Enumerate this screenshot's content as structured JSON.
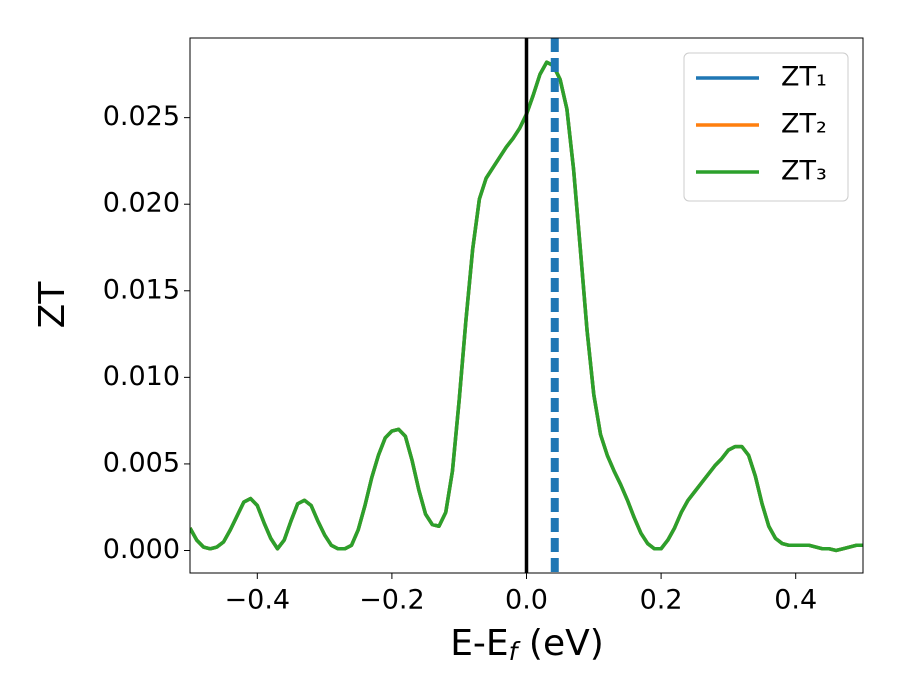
{
  "chart_data": {
    "type": "line",
    "xlabel": [
      "E-E",
      "f",
      " (eV)"
    ],
    "ylabel": "ZT",
    "x": [
      -0.5,
      -0.49,
      -0.48,
      -0.47,
      -0.46,
      -0.45,
      -0.44,
      -0.43,
      -0.42,
      -0.41,
      -0.4,
      -0.39,
      -0.38,
      -0.37,
      -0.36,
      -0.35,
      -0.34,
      -0.33,
      -0.32,
      -0.31,
      -0.3,
      -0.29,
      -0.28,
      -0.27,
      -0.26,
      -0.25,
      -0.24,
      -0.23,
      -0.22,
      -0.21,
      -0.2,
      -0.19,
      -0.18,
      -0.17,
      -0.16,
      -0.15,
      -0.14,
      -0.13,
      -0.12,
      -0.11,
      -0.1,
      -0.09,
      -0.08,
      -0.07,
      -0.06,
      -0.05,
      -0.04,
      -0.03,
      -0.02,
      -0.01,
      0.0,
      0.01,
      0.02,
      0.03,
      0.04,
      0.05,
      0.06,
      0.07,
      0.08,
      0.09,
      0.1,
      0.11,
      0.12,
      0.13,
      0.14,
      0.15,
      0.16,
      0.17,
      0.18,
      0.19,
      0.2,
      0.21,
      0.22,
      0.23,
      0.24,
      0.25,
      0.26,
      0.27,
      0.28,
      0.29,
      0.3,
      0.31,
      0.32,
      0.33,
      0.34,
      0.35,
      0.36,
      0.37,
      0.38,
      0.39,
      0.4,
      0.41,
      0.42,
      0.43,
      0.44,
      0.45,
      0.46,
      0.47,
      0.48,
      0.49,
      0.5
    ],
    "series": [
      {
        "name": "ZT₁",
        "color": "#1f77b4",
        "values": [
          0.0013,
          0.0006,
          0.0002,
          0.0001,
          0.0002,
          0.0005,
          0.0012,
          0.002,
          0.0028,
          0.003,
          0.0026,
          0.0016,
          0.0007,
          0.0001,
          0.0006,
          0.0017,
          0.0027,
          0.0029,
          0.0026,
          0.0017,
          0.0009,
          0.0003,
          0.0001,
          0.0001,
          0.0003,
          0.0012,
          0.0026,
          0.0042,
          0.0055,
          0.0065,
          0.0069,
          0.007,
          0.0066,
          0.0052,
          0.0035,
          0.0021,
          0.0015,
          0.0014,
          0.0022,
          0.0046,
          0.0087,
          0.0133,
          0.0174,
          0.0203,
          0.0215,
          0.0221,
          0.0227,
          0.0233,
          0.0238,
          0.0244,
          0.0252,
          0.0263,
          0.0275,
          0.0282,
          0.028,
          0.0272,
          0.0255,
          0.022,
          0.0174,
          0.0127,
          0.009,
          0.0067,
          0.0055,
          0.0046,
          0.0038,
          0.0029,
          0.0019,
          0.001,
          0.0004,
          0.0001,
          0.0001,
          0.0006,
          0.0013,
          0.0022,
          0.0029,
          0.0034,
          0.0039,
          0.0044,
          0.0049,
          0.0053,
          0.0058,
          0.006,
          0.006,
          0.0055,
          0.0043,
          0.0027,
          0.0014,
          0.0007,
          0.0004,
          0.0003,
          0.0003,
          0.0003,
          0.0003,
          0.0002,
          0.0001,
          0.0001,
          0.0,
          0.0001,
          0.0002,
          0.0003,
          0.0003
        ]
      },
      {
        "name": "ZT₂",
        "color": "#ff7f0e",
        "values": [
          0.0013,
          0.0006,
          0.0002,
          0.0001,
          0.0002,
          0.0005,
          0.0012,
          0.002,
          0.0028,
          0.003,
          0.0026,
          0.0016,
          0.0007,
          0.0001,
          0.0006,
          0.0017,
          0.0027,
          0.0029,
          0.0026,
          0.0017,
          0.0009,
          0.0003,
          0.0001,
          0.0001,
          0.0003,
          0.0012,
          0.0026,
          0.0042,
          0.0055,
          0.0065,
          0.0069,
          0.007,
          0.0066,
          0.0052,
          0.0035,
          0.0021,
          0.0015,
          0.0014,
          0.0022,
          0.0046,
          0.0087,
          0.0133,
          0.0174,
          0.0203,
          0.0215,
          0.0221,
          0.0227,
          0.0233,
          0.0238,
          0.0244,
          0.0252,
          0.0263,
          0.0275,
          0.0282,
          0.028,
          0.0272,
          0.0255,
          0.022,
          0.0174,
          0.0127,
          0.009,
          0.0067,
          0.0055,
          0.0046,
          0.0038,
          0.0029,
          0.0019,
          0.001,
          0.0004,
          0.0001,
          0.0001,
          0.0006,
          0.0013,
          0.0022,
          0.0029,
          0.0034,
          0.0039,
          0.0044,
          0.0049,
          0.0053,
          0.0058,
          0.006,
          0.006,
          0.0055,
          0.0043,
          0.0027,
          0.0014,
          0.0007,
          0.0004,
          0.0003,
          0.0003,
          0.0003,
          0.0003,
          0.0002,
          0.0001,
          0.0001,
          0.0,
          0.0001,
          0.0002,
          0.0003,
          0.0003
        ]
      },
      {
        "name": "ZT₃",
        "color": "#2ca02c",
        "values": [
          0.0013,
          0.0006,
          0.0002,
          0.0001,
          0.0002,
          0.0005,
          0.0012,
          0.002,
          0.0028,
          0.003,
          0.0026,
          0.0016,
          0.0007,
          0.0001,
          0.0006,
          0.0017,
          0.0027,
          0.0029,
          0.0026,
          0.0017,
          0.0009,
          0.0003,
          0.0001,
          0.0001,
          0.0003,
          0.0012,
          0.0026,
          0.0042,
          0.0055,
          0.0065,
          0.0069,
          0.007,
          0.0066,
          0.0052,
          0.0035,
          0.0021,
          0.0015,
          0.0014,
          0.0022,
          0.0046,
          0.0087,
          0.0133,
          0.0174,
          0.0203,
          0.0215,
          0.0221,
          0.0227,
          0.0233,
          0.0238,
          0.0244,
          0.0252,
          0.0263,
          0.0275,
          0.0282,
          0.028,
          0.0272,
          0.0255,
          0.022,
          0.0174,
          0.0127,
          0.009,
          0.0067,
          0.0055,
          0.0046,
          0.0038,
          0.0029,
          0.0019,
          0.001,
          0.0004,
          0.0001,
          0.0001,
          0.0006,
          0.0013,
          0.0022,
          0.0029,
          0.0034,
          0.0039,
          0.0044,
          0.0049,
          0.0053,
          0.0058,
          0.006,
          0.006,
          0.0055,
          0.0043,
          0.0027,
          0.0014,
          0.0007,
          0.0004,
          0.0003,
          0.0003,
          0.0003,
          0.0003,
          0.0002,
          0.0001,
          0.0001,
          0.0,
          0.0001,
          0.0002,
          0.0003,
          0.0003
        ]
      }
    ],
    "vlines": [
      {
        "x": 0.0,
        "color": "#000000",
        "style": "solid"
      },
      {
        "x": 0.042,
        "color": "#1f77b4",
        "style": "dashed"
      }
    ],
    "xlim": [
      -0.5,
      0.5
    ],
    "xticks": [
      {
        "value": -0.4,
        "label": "−0.4"
      },
      {
        "value": -0.2,
        "label": "−0.2"
      },
      {
        "value": 0.0,
        "label": "0.0"
      },
      {
        "value": 0.2,
        "label": "0.2"
      },
      {
        "value": 0.4,
        "label": "0.4"
      }
    ],
    "ylim": [
      -0.0013,
      0.0296
    ],
    "yticks": [
      {
        "value": 0.0,
        "label": "0.000"
      },
      {
        "value": 0.005,
        "label": "0.005"
      },
      {
        "value": 0.01,
        "label": "0.010"
      },
      {
        "value": 0.015,
        "label": "0.015"
      },
      {
        "value": 0.02,
        "label": "0.020"
      },
      {
        "value": 0.025,
        "label": "0.025"
      }
    ],
    "grid": false,
    "legend": "upper right"
  }
}
